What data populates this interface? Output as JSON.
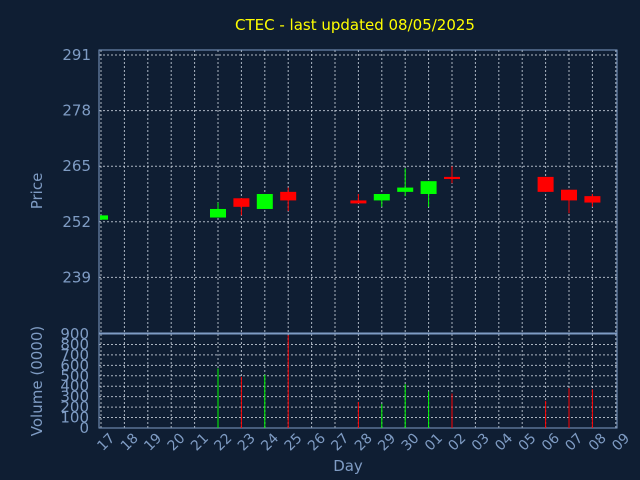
{
  "title": "CTEC - last updated 08/05/2025",
  "colors": {
    "up": "#00ff00",
    "down": "#ff0000",
    "title": "#ffff00",
    "axis": "#7f9cc4",
    "background": "#0f1e33"
  },
  "chart_data": {
    "type": "candlestick",
    "title": "CTEC - last updated 08/05/2025",
    "xlabel": "Day",
    "x_ticks": [
      "17",
      "18",
      "19",
      "20",
      "21",
      "22",
      "23",
      "24",
      "25",
      "26",
      "27",
      "28",
      "29",
      "30",
      "01",
      "02",
      "03",
      "04",
      "05",
      "06",
      "07",
      "08",
      "09"
    ],
    "price": {
      "ylabel": "Price",
      "ylim": [
        226,
        291
      ],
      "ticks": [
        "291",
        "278",
        "265",
        "252",
        "239"
      ],
      "tick_values": [
        291,
        278,
        265,
        252,
        239
      ],
      "grid": true
    },
    "volume": {
      "ylabel": "Volume (0000)",
      "ylim": [
        0,
        900
      ],
      "ticks": [
        "900",
        "800",
        "700",
        "600",
        "500",
        "400",
        "300",
        "200",
        "100",
        "0"
      ],
      "tick_values": [
        900,
        800,
        700,
        600,
        500,
        400,
        300,
        200,
        100,
        0
      ],
      "grid": true
    },
    "candles": [
      {
        "day": "17",
        "open": 252.5,
        "close": 253.5,
        "high": 253.5,
        "low": 252.5,
        "volume": 0
      },
      {
        "day": "22",
        "open": 253.0,
        "close": 255.0,
        "high": 256.5,
        "low": 253.0,
        "volume": 570
      },
      {
        "day": "23",
        "open": 257.5,
        "close": 255.5,
        "high": 257.5,
        "low": 253.5,
        "volume": 490
      },
      {
        "day": "24",
        "open": 255.0,
        "close": 258.5,
        "high": 258.5,
        "low": 255.0,
        "volume": 510
      },
      {
        "day": "25",
        "open": 259.0,
        "close": 257.0,
        "high": 260.0,
        "low": 254.5,
        "volume": 890
      },
      {
        "day": "28",
        "open": 257.0,
        "close": 256.3,
        "high": 258.5,
        "low": 256.3,
        "volume": 250
      },
      {
        "day": "29",
        "open": 257.0,
        "close": 258.5,
        "high": 258.5,
        "low": 255.5,
        "volume": 230
      },
      {
        "day": "30",
        "open": 259.0,
        "close": 260.0,
        "high": 264.5,
        "low": 258.0,
        "volume": 420
      },
      {
        "day": "01",
        "open": 258.5,
        "close": 261.5,
        "high": 261.5,
        "low": 255.5,
        "volume": 350
      },
      {
        "day": "02",
        "open": 262.5,
        "close": 262.0,
        "high": 265.0,
        "low": 261.0,
        "volume": 330
      },
      {
        "day": "06",
        "open": 262.5,
        "close": 259.0,
        "high": 262.5,
        "low": 259.0,
        "volume": 260
      },
      {
        "day": "07",
        "open": 259.5,
        "close": 257.0,
        "high": 259.5,
        "low": 254.0,
        "volume": 380
      },
      {
        "day": "08",
        "open": 258.0,
        "close": 256.5,
        "high": 258.5,
        "low": 255.5,
        "volume": 370
      }
    ]
  }
}
